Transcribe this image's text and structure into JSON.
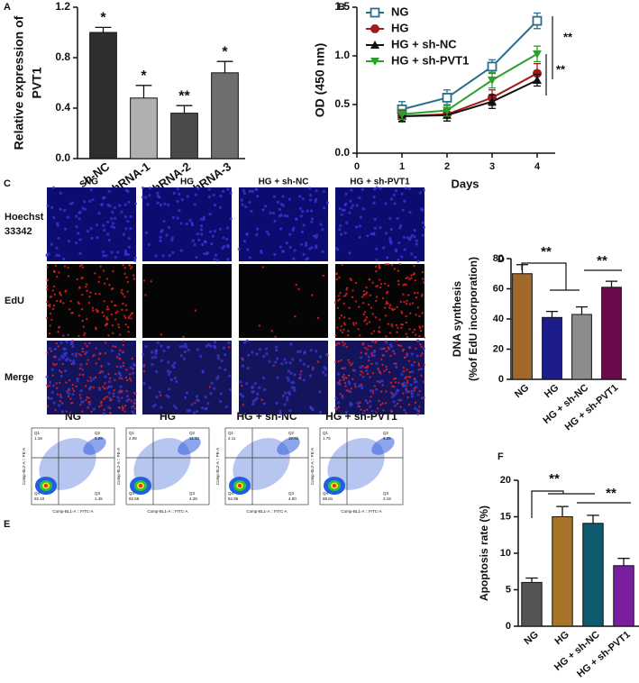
{
  "panel_labels": [
    "A",
    "B",
    "C",
    "D",
    "E",
    "F"
  ],
  "chart_data": [
    {
      "type": "bar",
      "ylabel": [
        "Relative expression of",
        "PVT1"
      ],
      "categories": [
        "sh-NC",
        "shRNA-1",
        "shRNA-2",
        "shRNA-3"
      ],
      "values": [
        1.0,
        0.48,
        0.36,
        0.68
      ],
      "errors": [
        0.04,
        0.1,
        0.06,
        0.09
      ],
      "colors": [
        "#2e2e2e",
        "#b0b0b0",
        "#4a4a4a",
        "#6e6e6e"
      ],
      "annotations": [
        "*",
        "*",
        "**",
        "*"
      ],
      "ylim": [
        0,
        1.2
      ],
      "yticks": [
        {
          "value": 0,
          "label": "0.0"
        },
        {
          "value": 0.4,
          "label": "0.4"
        },
        {
          "value": 0.8,
          "label": "0.8"
        },
        {
          "value": 1.2,
          "label": "1.2"
        }
      ]
    },
    {
      "type": "line",
      "xlabel": "Days",
      "ylabel": "OD (450 nm)",
      "x": [
        1,
        2,
        3,
        4
      ],
      "xlim": [
        0,
        4.4
      ],
      "xticks": [
        0,
        1,
        2,
        3,
        4
      ],
      "ylim": [
        0,
        1.5
      ],
      "yticks": [
        {
          "value": 0,
          "label": "0.0"
        },
        {
          "value": 0.5,
          "label": "0.5"
        },
        {
          "value": 1.0,
          "label": "1.0"
        },
        {
          "value": 1.5,
          "label": "1.5"
        }
      ],
      "series": [
        {
          "name": "NG",
          "color": "#2a6f8a",
          "marker": "open-square",
          "values": [
            0.45,
            0.57,
            0.89,
            1.36
          ],
          "errors": [
            0.08,
            0.08,
            0.07,
            0.08
          ]
        },
        {
          "name": "HG",
          "color": "#a01c1c",
          "marker": "circle",
          "values": [
            0.38,
            0.4,
            0.57,
            0.82
          ],
          "errors": [
            0.06,
            0.07,
            0.08,
            0.1
          ]
        },
        {
          "name": "HG + sh-NC",
          "color": "#111111",
          "marker": "triangle",
          "values": [
            0.38,
            0.39,
            0.53,
            0.75
          ],
          "errors": [
            0.05,
            0.06,
            0.07,
            0.06
          ]
        },
        {
          "name": "HG + sh-PVT1",
          "color": "#2ca02c",
          "marker": "down-triangle",
          "values": [
            0.4,
            0.44,
            0.75,
            1.02
          ],
          "errors": [
            0.05,
            0.06,
            0.08,
            0.08
          ]
        }
      ],
      "annotations": [
        "**",
        "**"
      ]
    },
    {
      "type": "bar",
      "ylabel": [
        "DNA synthesis",
        "(%of EdU incorporation)"
      ],
      "categories": [
        "NG",
        "HG",
        "HG + sh-NC",
        "HG + sh-PVT1"
      ],
      "values": [
        70,
        41,
        43,
        61
      ],
      "errors": [
        6,
        4,
        5,
        4
      ],
      "colors": [
        "#a0692a",
        "#1c1c8c",
        "#8c8c8c",
        "#6a0a4a"
      ],
      "annotations": [
        "**",
        "**"
      ],
      "ylim": [
        0,
        80
      ],
      "yticks": [
        0,
        20,
        40,
        60,
        80
      ]
    },
    {
      "type": "bar",
      "ylabel": [
        "Apoptosis rate (%)"
      ],
      "categories": [
        "NG",
        "HG",
        "HG + sh-NC",
        "HG + sh-PVT1"
      ],
      "values": [
        6,
        15,
        14.1,
        8.3
      ],
      "errors": [
        0.6,
        1.4,
        1.1,
        1.0
      ],
      "colors": [
        "#555555",
        "#a8742a",
        "#0e5a6e",
        "#7a1ea0"
      ],
      "annotations": [
        "**",
        "**"
      ],
      "ylim": [
        0,
        20
      ],
      "yticks": [
        0,
        5,
        10,
        15,
        20
      ]
    }
  ],
  "microscopy": {
    "columns": [
      "NG",
      "HG",
      "HG + sh-NC",
      "HG + sh-PVT1"
    ],
    "rows": [
      [
        "Hoechst",
        "33342"
      ],
      [
        "EdU"
      ],
      [
        "Merge"
      ]
    ]
  },
  "flow": {
    "x_label": "Comp-BL1-A :: FITC-A",
    "y_label": "Comp-BL2-A :: PE-A",
    "quadrant_names": [
      "Q1",
      "Q2",
      "Q3",
      "Q4"
    ],
    "plots": [
      {
        "title": "NG",
        "quadrants": [
          "1.16",
          "5.29",
          "1.45",
          "92.10"
        ]
      },
      {
        "title": "HG",
        "quadrants": [
          "2.08",
          "11.10",
          "4.28",
          "82.55"
        ]
      },
      {
        "title": "HG + sh-NC",
        "quadrants": [
          "2.11",
          "10.92",
          "4.00",
          "82.96"
        ]
      },
      {
        "title": "HG + sh-PVT1",
        "quadrants": [
          "1.75",
          "6.25",
          "3.19",
          "88.81"
        ]
      }
    ]
  }
}
